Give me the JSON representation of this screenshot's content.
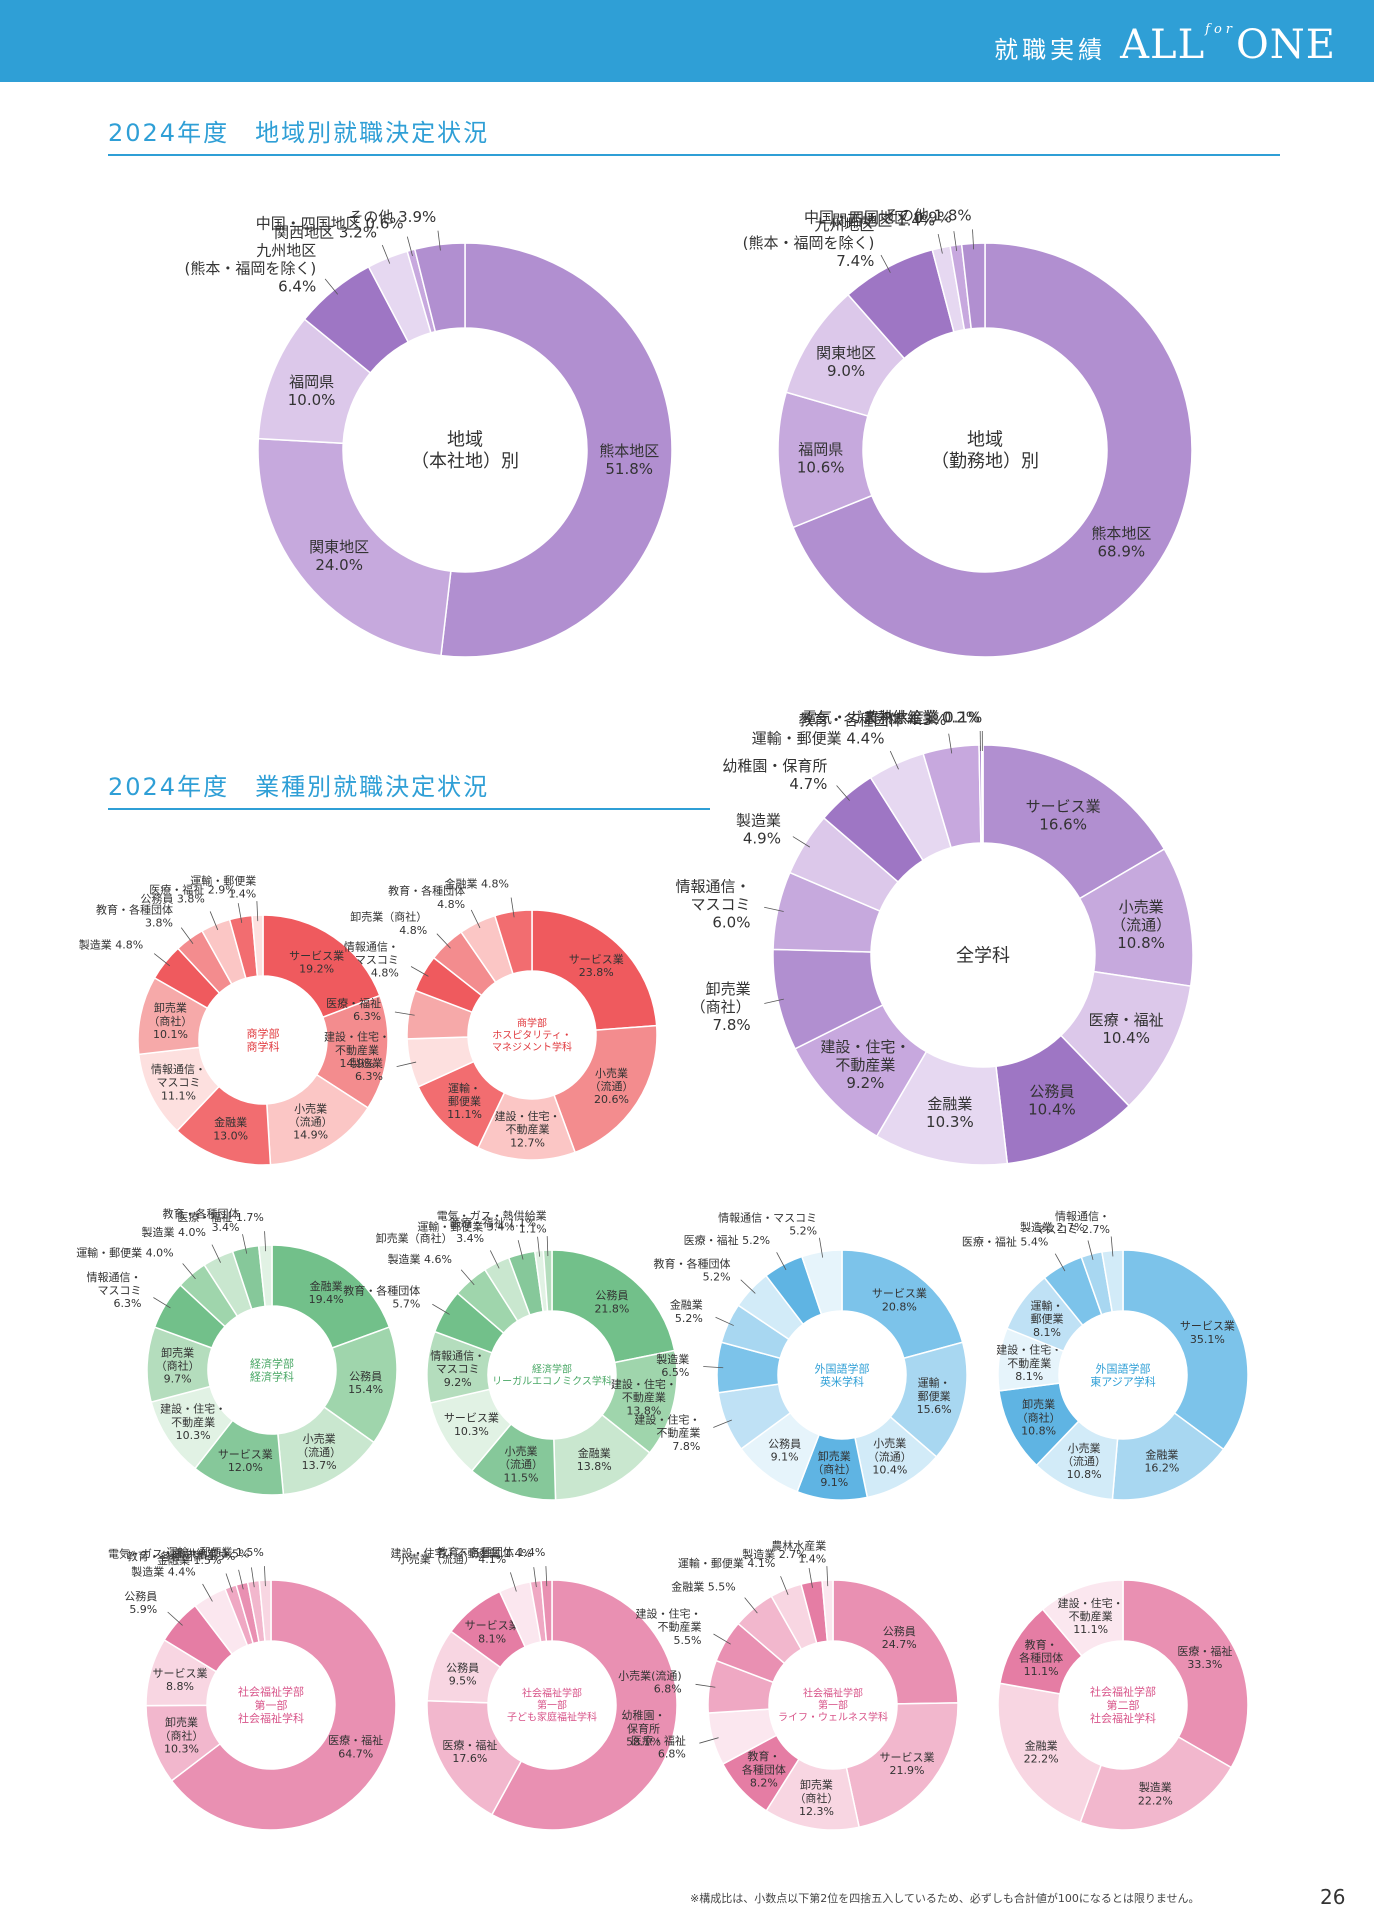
{
  "header": {
    "label": "就職実績",
    "brand_all": "ALL",
    "brand_for": "for",
    "brand_one": "ONE",
    "bg_color": "#2f9fd6"
  },
  "sections": {
    "regional_title": "2024年度　地域別就職決定状況",
    "industry_title": "2024年度　業種別就職決定状況"
  },
  "footnote": "※構成比は、小数点以下第2位を四捨五入しているため、必ずしも合計値が100になるとは限りません。",
  "page_number": "26",
  "chart_data": [
    {
      "type": "donut",
      "center_label": [
        "地域",
        "（本社地）別"
      ],
      "palette": "purple",
      "segments": [
        {
          "label": [
            "熊本地区",
            "51.8%"
          ],
          "value": 51.8
        },
        {
          "label": [
            "関東地区",
            "24.0%"
          ],
          "value": 24.0
        },
        {
          "label": [
            "福岡県",
            "10.0%"
          ],
          "value": 10.0
        },
        {
          "label": [
            "九州地区",
            "(熊本・福岡を除く)",
            "6.4%"
          ],
          "value": 6.4
        },
        {
          "label": [
            "関西地区 3.2%"
          ],
          "value": 3.2
        },
        {
          "label": [
            "中国・四国地区 0.6%"
          ],
          "value": 0.6
        },
        {
          "label": [
            "その他 3.9%"
          ],
          "value": 3.9
        }
      ]
    },
    {
      "type": "donut",
      "center_label": [
        "地域",
        "（勤務地）別"
      ],
      "palette": "purple",
      "segments": [
        {
          "label": [
            "熊本地区",
            "68.9%"
          ],
          "value": 68.9
        },
        {
          "label": [
            "福岡県",
            "10.6%"
          ],
          "value": 10.6
        },
        {
          "label": [
            "関東地区",
            "9.0%"
          ],
          "value": 9.0
        },
        {
          "label": [
            "九州地区",
            "(熊本・福岡を除く)",
            "7.4%"
          ],
          "value": 7.4
        },
        {
          "label": [
            "関西地区 1.4%"
          ],
          "value": 1.4
        },
        {
          "label": [
            "中国・四国地区 0.9%"
          ],
          "value": 0.9
        },
        {
          "label": [
            "その他 1.8%"
          ],
          "value": 1.8
        }
      ]
    },
    {
      "type": "donut",
      "center_label": [
        "全学科"
      ],
      "palette": "purple",
      "segments": [
        {
          "label": [
            "サービス業",
            "16.6%"
          ],
          "value": 16.6
        },
        {
          "label": [
            "小売業",
            "（流通）",
            "10.8%"
          ],
          "value": 10.8
        },
        {
          "label": [
            "医療・福祉",
            "10.4%"
          ],
          "value": 10.4
        },
        {
          "label": [
            "公務員",
            "10.4%"
          ],
          "value": 10.4
        },
        {
          "label": [
            "金融業",
            "10.3%"
          ],
          "value": 10.3
        },
        {
          "label": [
            "建設・住宅・",
            "不動産業",
            "9.2%"
          ],
          "value": 9.2
        },
        {
          "label": [
            "卸売業",
            "（商社）",
            "7.8%"
          ],
          "value": 7.8
        },
        {
          "label": [
            "情報通信・",
            "マスコミ",
            "6.0%"
          ],
          "value": 6.0
        },
        {
          "label": [
            "製造業",
            "4.9%"
          ],
          "value": 4.9
        },
        {
          "label": [
            "幼稚園・保育所",
            "4.7%"
          ],
          "value": 4.7
        },
        {
          "label": [
            "運輸・郵便業 4.4%"
          ],
          "value": 4.4
        },
        {
          "label": [
            "教育・各種団体 4.3%"
          ],
          "value": 4.3
        },
        {
          "label": [
            "電気・ガス熱供給業 0.2%"
          ],
          "value": 0.2
        },
        {
          "label": [
            "農林水産業 0.1%"
          ],
          "value": 0.1
        }
      ]
    },
    {
      "type": "donut",
      "center_label": [
        "商学部",
        "商学科"
      ],
      "palette": "red",
      "segments": [
        {
          "label": [
            "サービス業",
            "19.2%"
          ],
          "value": 19.2
        },
        {
          "label": [
            "建設・住宅・",
            "不動産業",
            "14.9%"
          ],
          "value": 14.9
        },
        {
          "label": [
            "小売業",
            "（流通）",
            "14.9%"
          ],
          "value": 14.9
        },
        {
          "label": [
            "金融業",
            "13.0%"
          ],
          "value": 13.0
        },
        {
          "label": [
            "情報通信・",
            "マスコミ",
            "11.1%"
          ],
          "value": 11.1
        },
        {
          "label": [
            "卸売業",
            "（商社）",
            "10.1%"
          ],
          "value": 10.1
        },
        {
          "label": [
            "製造業 4.8%"
          ],
          "value": 4.8
        },
        {
          "label": [
            "教育・各種団体",
            "3.8%"
          ],
          "value": 3.8
        },
        {
          "label": [
            "公務員 3.8%"
          ],
          "value": 3.8
        },
        {
          "label": [
            "医療・福祉 2.9%"
          ],
          "value": 2.9
        },
        {
          "label": [
            "運輸・郵便業",
            "1.4%"
          ],
          "value": 1.4
        }
      ]
    },
    {
      "type": "donut",
      "center_label": [
        "商学部",
        "ホスピタリティ・",
        "マネジメント学科"
      ],
      "palette": "red",
      "segments": [
        {
          "label": [
            "サービス業",
            "23.8%"
          ],
          "value": 23.8
        },
        {
          "label": [
            "小売業",
            "（流通）",
            "20.6%"
          ],
          "value": 20.6
        },
        {
          "label": [
            "建設・住宅・",
            "不動産業",
            "12.7%"
          ],
          "value": 12.7
        },
        {
          "label": [
            "運輸・",
            "郵便業",
            "11.1%"
          ],
          "value": 11.1
        },
        {
          "label": [
            "製造業",
            "6.3%"
          ],
          "value": 6.3
        },
        {
          "label": [
            "医療・福祉",
            "6.3%"
          ],
          "value": 6.3
        },
        {
          "label": [
            "情報通信・",
            "マスコミ",
            "4.8%"
          ],
          "value": 4.8
        },
        {
          "label": [
            "卸売業（商社）",
            "4.8%"
          ],
          "value": 4.8
        },
        {
          "label": [
            "教育・各種団体",
            "4.8%"
          ],
          "value": 4.8
        },
        {
          "label": [
            "金融業 4.8%"
          ],
          "value": 4.8
        }
      ]
    },
    {
      "type": "donut",
      "center_label": [
        "経済学部",
        "経済学科"
      ],
      "palette": "green",
      "segments": [
        {
          "label": [
            "金融業",
            "19.4%"
          ],
          "value": 19.4
        },
        {
          "label": [
            "公務員",
            "15.4%"
          ],
          "value": 15.4
        },
        {
          "label": [
            "小売業",
            "（流通）",
            "13.7%"
          ],
          "value": 13.7
        },
        {
          "label": [
            "サービス業",
            "12.0%"
          ],
          "value": 12.0
        },
        {
          "label": [
            "建設・住宅・",
            "不動産業",
            "10.3%"
          ],
          "value": 10.3
        },
        {
          "label": [
            "卸売業",
            "（商社）",
            "9.7%"
          ],
          "value": 9.7
        },
        {
          "label": [
            "情報通信・",
            "マスコミ",
            "6.3%"
          ],
          "value": 6.3
        },
        {
          "label": [
            "運輸・郵便業 4.0%"
          ],
          "value": 4.0
        },
        {
          "label": [
            "製造業 4.0%"
          ],
          "value": 4.0
        },
        {
          "label": [
            "教育・各種団体",
            "3.4%"
          ],
          "value": 3.4
        },
        {
          "label": [
            "医療・福祉 1.7%"
          ],
          "value": 1.7
        }
      ]
    },
    {
      "type": "donut",
      "center_label": [
        "経済学部",
        "リーガルエコノミクス学科"
      ],
      "palette": "green",
      "segments": [
        {
          "label": [
            "公務員",
            "21.8%"
          ],
          "value": 21.8
        },
        {
          "label": [
            "建設・住宅・",
            "不動産業",
            "13.8%"
          ],
          "value": 13.8
        },
        {
          "label": [
            "金融業",
            "13.8%"
          ],
          "value": 13.8
        },
        {
          "label": [
            "小売業",
            "（流通）",
            "11.5%"
          ],
          "value": 11.5
        },
        {
          "label": [
            "サービス業",
            "10.3%"
          ],
          "value": 10.3
        },
        {
          "label": [
            "情報通信・",
            "マスコミ",
            "9.2%"
          ],
          "value": 9.2
        },
        {
          "label": [
            "教育・各種団体",
            "5.7%"
          ],
          "value": 5.7
        },
        {
          "label": [
            "製造業 4.6%"
          ],
          "value": 4.6
        },
        {
          "label": [
            "卸売業（商社） 3.4%"
          ],
          "value": 3.4
        },
        {
          "label": [
            "運輸・郵便業 3.4%"
          ],
          "value": 3.4
        },
        {
          "label": [
            "医療・福祉 1.1%"
          ],
          "value": 1.1
        },
        {
          "label": [
            "電気・ガス・熱供給業",
            "1.1%"
          ],
          "value": 1.1
        }
      ]
    },
    {
      "type": "donut",
      "center_label": [
        "外国語学部",
        "英米学科"
      ],
      "palette": "blue",
      "segments": [
        {
          "label": [
            "サービス業",
            "20.8%"
          ],
          "value": 20.8
        },
        {
          "label": [
            "運輸・",
            "郵便業",
            "15.6%"
          ],
          "value": 15.6
        },
        {
          "label": [
            "小売業",
            "（流通）",
            "10.4%"
          ],
          "value": 10.4
        },
        {
          "label": [
            "卸売業",
            "（商社）",
            "9.1%"
          ],
          "value": 9.1
        },
        {
          "label": [
            "公務員",
            "9.1%"
          ],
          "value": 9.1
        },
        {
          "label": [
            "建設・住宅・",
            "不動産業",
            "7.8%"
          ],
          "value": 7.8
        },
        {
          "label": [
            "製造業",
            "6.5%"
          ],
          "value": 6.5
        },
        {
          "label": [
            "金融業",
            "5.2%"
          ],
          "value": 5.2
        },
        {
          "label": [
            "教育・各種団体",
            "5.2%"
          ],
          "value": 5.2
        },
        {
          "label": [
            "医療・福祉 5.2%"
          ],
          "value": 5.2
        },
        {
          "label": [
            "情報通信・マスコミ",
            "5.2%"
          ],
          "value": 5.2
        }
      ]
    },
    {
      "type": "donut",
      "center_label": [
        "外国語学部",
        "東アジア学科"
      ],
      "palette": "blue",
      "segments": [
        {
          "label": [
            "サービス業",
            "35.1%"
          ],
          "value": 35.1
        },
        {
          "label": [
            "金融業",
            "16.2%"
          ],
          "value": 16.2
        },
        {
          "label": [
            "小売業",
            "（流通）",
            "10.8%"
          ],
          "value": 10.8
        },
        {
          "label": [
            "卸売業",
            "（商社）",
            "10.8%"
          ],
          "value": 10.8
        },
        {
          "label": [
            "建設・住宅・",
            "不動産業",
            "8.1%"
          ],
          "value": 8.1
        },
        {
          "label": [
            "運輸・",
            "郵便業",
            "8.1%"
          ],
          "value": 8.1
        },
        {
          "label": [
            "医療・福祉 5.4%"
          ],
          "value": 5.4
        },
        {
          "label": [
            "製造業 2.7%"
          ],
          "value": 2.7
        },
        {
          "label": [
            "情報通信・",
            "マスコミ 2.7%"
          ],
          "value": 2.7
        }
      ]
    },
    {
      "type": "donut",
      "center_label": [
        "社会福祉学部",
        "第一部",
        "社会福祉学科"
      ],
      "palette": "pink",
      "segments": [
        {
          "label": [
            "医療・福祉",
            "64.7%"
          ],
          "value": 64.7
        },
        {
          "label": [
            "卸売業",
            "（商社）",
            "10.3%"
          ],
          "value": 10.3
        },
        {
          "label": [
            "サービス業",
            "8.8%"
          ],
          "value": 8.8
        },
        {
          "label": [
            "公務員",
            "5.9%"
          ],
          "value": 5.9
        },
        {
          "label": [
            "製造業 4.4%"
          ],
          "value": 4.4
        },
        {
          "label": [
            "金融業 1.5%"
          ],
          "value": 1.5
        },
        {
          "label": [
            "教育・各種団体 1.5%"
          ],
          "value": 1.5
        },
        {
          "label": [
            "電気・ガス・熱供給業 1.5%"
          ],
          "value": 1.5
        },
        {
          "label": [
            "運輸・郵便業 1.5%"
          ],
          "value": 1.5
        }
      ]
    },
    {
      "type": "donut",
      "center_label": [
        "社会福祉学部",
        "第一部",
        "子ども家庭福祉学科"
      ],
      "palette": "pink",
      "segments": [
        {
          "label": [
            "幼稚園・",
            "保育所",
            "58.1%"
          ],
          "value": 58.1
        },
        {
          "label": [
            "医療・福祉",
            "17.6%"
          ],
          "value": 17.6
        },
        {
          "label": [
            "公務員",
            "9.5%"
          ],
          "value": 9.5
        },
        {
          "label": [
            "サービス業",
            "8.1%"
          ],
          "value": 8.1
        },
        {
          "label": [
            "小売業（流通） 4.1%"
          ],
          "value": 4.1
        },
        {
          "label": [
            "建設・住宅・不動産業 1.4%"
          ],
          "value": 1.4
        },
        {
          "label": [
            "教育・各種団体 1.4%"
          ],
          "value": 1.4
        }
      ]
    },
    {
      "type": "donut",
      "center_label": [
        "社会福祉学部",
        "第一部",
        "ライフ・ウェルネス学科"
      ],
      "palette": "pink",
      "segments": [
        {
          "label": [
            "公務員",
            "24.7%"
          ],
          "value": 24.7
        },
        {
          "label": [
            "サービス業",
            "21.9%"
          ],
          "value": 21.9
        },
        {
          "label": [
            "卸売業",
            "（商社）",
            "12.3%"
          ],
          "value": 12.3
        },
        {
          "label": [
            "教育・",
            "各種団体",
            "8.2%"
          ],
          "value": 8.2
        },
        {
          "label": [
            "医療・福祉",
            "6.8%"
          ],
          "value": 6.8
        },
        {
          "label": [
            "小売業(流通)",
            "6.8%"
          ],
          "value": 6.8
        },
        {
          "label": [
            "建設・住宅・",
            "不動産業",
            "5.5%"
          ],
          "value": 5.5
        },
        {
          "label": [
            "金融業 5.5%"
          ],
          "value": 5.5
        },
        {
          "label": [
            "運輸・郵便業 4.1%"
          ],
          "value": 4.1
        },
        {
          "label": [
            "製造業 2.7%"
          ],
          "value": 2.7
        },
        {
          "label": [
            "農林水産業",
            "1.4%"
          ],
          "value": 1.4
        }
      ]
    },
    {
      "type": "donut",
      "center_label": [
        "社会福祉学部",
        "第二部",
        "社会福祉学科"
      ],
      "palette": "pink",
      "segments": [
        {
          "label": [
            "医療・福祉",
            "33.3%"
          ],
          "value": 33.3
        },
        {
          "label": [
            "製造業",
            "22.2%"
          ],
          "value": 22.2
        },
        {
          "label": [
            "金融業",
            "22.2%"
          ],
          "value": 22.2
        },
        {
          "label": [
            "教育・",
            "各種団体",
            "11.1%"
          ],
          "value": 11.1
        },
        {
          "label": [
            "建設・住宅・",
            "不動産業",
            "11.1%"
          ],
          "value": 11.1
        }
      ]
    }
  ],
  "palettes": {
    "purple": {
      "colors": [
        "#b18fd0",
        "#c6a9dd",
        "#dcc8ea",
        "#9e76c4",
        "#e6d8f1",
        "#c7a8de"
      ],
      "text": "#333333"
    },
    "red": {
      "colors": [
        "#ef5a5e",
        "#f38c8e",
        "#fbc6c5",
        "#f26d70",
        "#fde0df",
        "#f6a9a9"
      ],
      "text": "#e0393e"
    },
    "green": {
      "colors": [
        "#72c08a",
        "#9fd5ac",
        "#c9e7cf",
        "#86c89a",
        "#e1f2e4",
        "#b4ddbd"
      ],
      "text": "#4aa866"
    },
    "blue": {
      "colors": [
        "#7cc3ea",
        "#a8d7f1",
        "#d2ebf8",
        "#5fb4e3",
        "#e6f4fb",
        "#bfe1f5"
      ],
      "text": "#2f9fd6"
    },
    "pink": {
      "colors": [
        "#e990b2",
        "#f2b7cd",
        "#f8d6e2",
        "#e57da4",
        "#fbe7ef",
        "#efa8c3"
      ],
      "text": "#d8558a"
    }
  }
}
